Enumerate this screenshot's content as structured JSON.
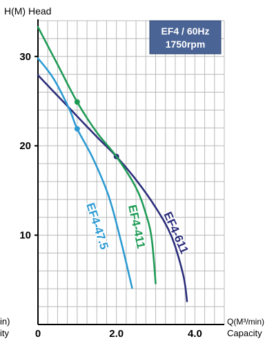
{
  "chart_data": {
    "type": "line",
    "title_line1": "EF4 / 60Hz",
    "title_line2": "1750rpm",
    "ylabel": "H(M) Head",
    "xlabel_left_1": "in)",
    "xlabel_left_2": "ity",
    "xlabel_right_1": "Q(M³/min)",
    "xlabel_right_2": "Capacity",
    "xlim": [
      0,
      4.75
    ],
    "ylim": [
      0,
      34
    ],
    "x_ticks": [
      {
        "value": 0,
        "label": "0"
      },
      {
        "value": 2.0,
        "label": "2.0"
      },
      {
        "value": 4.0,
        "label": "4.0"
      }
    ],
    "y_ticks": [
      {
        "value": 10,
        "label": "10"
      },
      {
        "value": 20,
        "label": "20"
      },
      {
        "value": 30,
        "label": "30"
      }
    ],
    "grid": true,
    "colors": {
      "badge": "#4a6496",
      "grid": "#b8b8b8"
    },
    "series": [
      {
        "name": "EF4-611",
        "color": "#2b2d7a",
        "points": [
          [
            0,
            27.9
          ],
          [
            0.5,
            25.6
          ],
          [
            1.0,
            23.3
          ],
          [
            1.5,
            21.0
          ],
          [
            2.0,
            18.8
          ],
          [
            2.5,
            16.2
          ],
          [
            3.0,
            13.1
          ],
          [
            3.4,
            9.9
          ],
          [
            3.7,
            5.6
          ],
          [
            3.8,
            2.6
          ]
        ],
        "marker": [
          2.0,
          18.8
        ]
      },
      {
        "name": "EF4-411",
        "color": "#1e9a55",
        "points": [
          [
            0,
            33.3
          ],
          [
            0.5,
            29.1
          ],
          [
            1.0,
            24.9
          ],
          [
            1.5,
            21.5
          ],
          [
            2.0,
            18.8
          ],
          [
            2.5,
            15.3
          ],
          [
            2.75,
            12.4
          ],
          [
            2.9,
            9.6
          ],
          [
            3.0,
            4.6
          ]
        ],
        "marker": [
          1.0,
          24.9
        ]
      },
      {
        "name": "EF4-47.5",
        "color": "#2b9ad2",
        "points": [
          [
            0,
            29.8
          ],
          [
            0.4,
            27.5
          ],
          [
            0.8,
            24.1
          ],
          [
            1.0,
            21.9
          ],
          [
            1.4,
            18.6
          ],
          [
            1.8,
            14.4
          ],
          [
            2.1,
            9.6
          ],
          [
            2.4,
            4.1
          ]
        ],
        "marker": [
          1.0,
          21.9
        ]
      }
    ]
  }
}
